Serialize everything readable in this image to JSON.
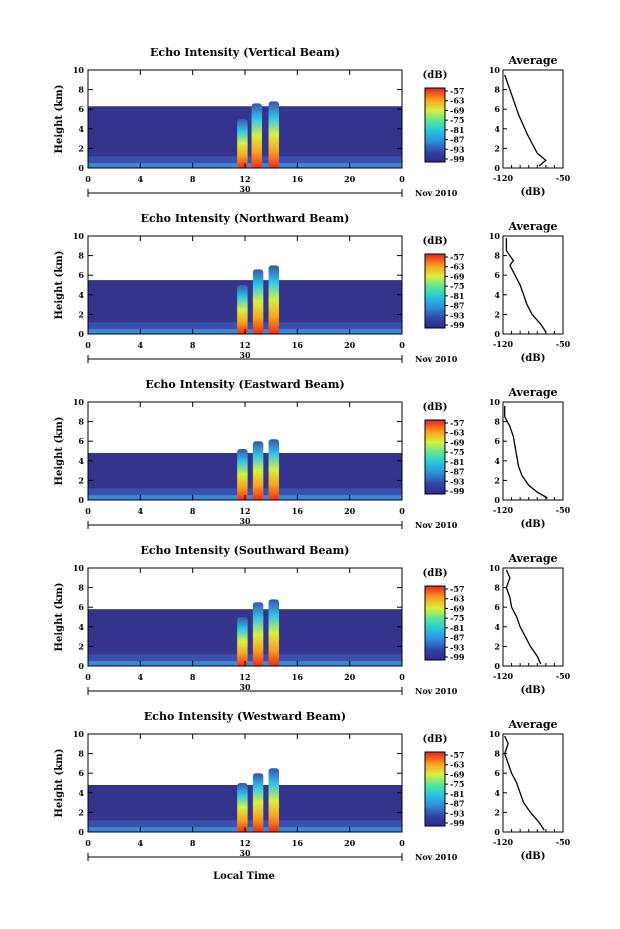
{
  "chart_data": [
    {
      "type": "heatmap",
      "title": "Echo Intensity (Vertical Beam)",
      "xlabel": "",
      "ylabel": "Height (km)",
      "xlim": [
        0,
        24
      ],
      "ylim": [
        0,
        10
      ],
      "xticks": [
        "0",
        "4",
        "8",
        "12",
        "16",
        "20",
        "0"
      ],
      "yticks": [
        "0",
        "2",
        "4",
        "6",
        "8",
        "10"
      ],
      "date_label": "30",
      "month_label": "Nov 2010",
      "colorbar": {
        "unit": "(dB)",
        "ticks": [
          "-57",
          "-63",
          "-69",
          "-75",
          "-81",
          "-87",
          "-93",
          "-99"
        ]
      },
      "profile": {
        "title": "Average",
        "xlabel": "(dB)",
        "xlim": [
          -120,
          -50
        ],
        "xticks": [
          "-120",
          "-50"
        ],
        "ylim": [
          0,
          10
        ],
        "points": [
          [
            -78,
            0.2
          ],
          [
            -70,
            0.8
          ],
          [
            -80,
            1.5
          ],
          [
            -86,
            2.5
          ],
          [
            -92,
            3.5
          ],
          [
            -97,
            4.5
          ],
          [
            -102,
            5.5
          ],
          [
            -106,
            6.5
          ],
          [
            -110,
            7.5
          ],
          [
            -114,
            8.5
          ],
          [
            -118,
            9.5
          ]
        ]
      },
      "echo": {
        "top": 6.3,
        "cells": [
          [
            11.8,
            0.4,
            5.0,
            -57
          ],
          [
            12.9,
            0.4,
            6.6,
            -57
          ],
          [
            14.2,
            0.4,
            6.8,
            -57
          ]
        ]
      }
    },
    {
      "type": "heatmap",
      "title": "Echo Intensity (Northward Beam)",
      "xlabel": "",
      "ylabel": "Height (km)",
      "xlim": [
        0,
        24
      ],
      "ylim": [
        0,
        10
      ],
      "xticks": [
        "0",
        "4",
        "8",
        "12",
        "16",
        "20",
        "0"
      ],
      "yticks": [
        "0",
        "2",
        "4",
        "6",
        "8",
        "10"
      ],
      "date_label": "30",
      "month_label": "Nov 2010",
      "colorbar": {
        "unit": "(dB)",
        "ticks": [
          "-57",
          "-63",
          "-69",
          "-75",
          "-81",
          "-87",
          "-93",
          "-99"
        ]
      },
      "profile": {
        "title": "Average",
        "xlabel": "(dB)",
        "xlim": [
          -120,
          -50
        ],
        "xticks": [
          "-120",
          "-50"
        ],
        "ylim": [
          0,
          10
        ],
        "points": [
          [
            -70,
            0.2
          ],
          [
            -76,
            1.0
          ],
          [
            -86,
            2.0
          ],
          [
            -92,
            3.0
          ],
          [
            -96,
            4.0
          ],
          [
            -100,
            5.0
          ],
          [
            -106,
            6.0
          ],
          [
            -112,
            7.0
          ],
          [
            -108,
            7.5
          ],
          [
            -116,
            8.5
          ],
          [
            -116,
            9.8
          ]
        ]
      },
      "echo": {
        "top": 5.5,
        "cells": [
          [
            11.8,
            0.4,
            5.0,
            -57
          ],
          [
            13.0,
            0.4,
            6.6,
            -57
          ],
          [
            14.2,
            0.4,
            7.0,
            -57
          ]
        ]
      }
    },
    {
      "type": "heatmap",
      "title": "Echo Intensity (Eastward Beam)",
      "xlabel": "",
      "ylabel": "Height (km)",
      "xlim": [
        0,
        24
      ],
      "ylim": [
        0,
        10
      ],
      "xticks": [
        "0",
        "4",
        "8",
        "12",
        "16",
        "20",
        "0"
      ],
      "yticks": [
        "0",
        "2",
        "4",
        "6",
        "8",
        "10"
      ],
      "date_label": "30",
      "month_label": "Nov 2010",
      "colorbar": {
        "unit": "(dB)",
        "ticks": [
          "-57",
          "-63",
          "-69",
          "-75",
          "-81",
          "-87",
          "-93",
          "-99"
        ]
      },
      "profile": {
        "title": "Average",
        "xlabel": "(dB)",
        "xlim": [
          -120,
          -50
        ],
        "xticks": [
          "-120",
          "-50"
        ],
        "ylim": [
          0,
          10
        ],
        "points": [
          [
            -68,
            0.2
          ],
          [
            -80,
            0.8
          ],
          [
            -90,
            1.5
          ],
          [
            -98,
            2.5
          ],
          [
            -102,
            3.5
          ],
          [
            -104,
            4.5
          ],
          [
            -106,
            5.5
          ],
          [
            -108,
            6.5
          ],
          [
            -112,
            7.5
          ],
          [
            -118,
            8.5
          ],
          [
            -118,
            9.6
          ]
        ]
      },
      "echo": {
        "top": 4.8,
        "cells": [
          [
            11.8,
            0.4,
            5.2,
            -57
          ],
          [
            13.0,
            0.4,
            6.0,
            -57
          ],
          [
            14.2,
            0.4,
            6.2,
            -57
          ]
        ]
      }
    },
    {
      "type": "heatmap",
      "title": "Echo Intensity (Southward Beam)",
      "xlabel": "",
      "ylabel": "Height (km)",
      "xlim": [
        0,
        24
      ],
      "ylim": [
        0,
        10
      ],
      "xticks": [
        "0",
        "4",
        "8",
        "12",
        "16",
        "20",
        "0"
      ],
      "yticks": [
        "0",
        "2",
        "4",
        "6",
        "8",
        "10"
      ],
      "date_label": "30",
      "month_label": "Nov 2010",
      "colorbar": {
        "unit": "(dB)",
        "ticks": [
          "-57",
          "-63",
          "-69",
          "-75",
          "-81",
          "-87",
          "-93",
          "-99"
        ]
      },
      "profile": {
        "title": "Average",
        "xlabel": "(dB)",
        "xlim": [
          -120,
          -50
        ],
        "xticks": [
          "-120",
          "-50"
        ],
        "ylim": [
          0,
          10
        ],
        "points": [
          [
            -76,
            0.2
          ],
          [
            -80,
            1.0
          ],
          [
            -88,
            2.0
          ],
          [
            -94,
            3.0
          ],
          [
            -100,
            4.0
          ],
          [
            -104,
            5.0
          ],
          [
            -110,
            6.0
          ],
          [
            -112,
            7.0
          ],
          [
            -116,
            8.0
          ],
          [
            -112,
            9.0
          ],
          [
            -116,
            9.8
          ]
        ]
      },
      "echo": {
        "top": 5.8,
        "cells": [
          [
            11.8,
            0.4,
            5.0,
            -57
          ],
          [
            13.0,
            0.4,
            6.5,
            -57
          ],
          [
            14.2,
            0.4,
            6.8,
            -57
          ]
        ]
      }
    },
    {
      "type": "heatmap",
      "title": "Echo Intensity (Westward Beam)",
      "xlabel": "Local Time",
      "ylabel": "Height (km)",
      "xlim": [
        0,
        24
      ],
      "ylim": [
        0,
        10
      ],
      "xticks": [
        "0",
        "4",
        "8",
        "12",
        "16",
        "20",
        "0"
      ],
      "yticks": [
        "0",
        "2",
        "4",
        "6",
        "8",
        "10"
      ],
      "date_label": "30",
      "month_label": "Nov 2010",
      "colorbar": {
        "unit": "(dB)",
        "ticks": [
          "-57",
          "-63",
          "-69",
          "-75",
          "-81",
          "-87",
          "-93",
          "-99"
        ]
      },
      "profile": {
        "title": "Average",
        "xlabel": "(dB)",
        "xlim": [
          -120,
          -50
        ],
        "xticks": [
          "-120",
          "-50"
        ],
        "ylim": [
          0,
          10
        ],
        "points": [
          [
            -72,
            0.2
          ],
          [
            -78,
            1.0
          ],
          [
            -88,
            2.0
          ],
          [
            -96,
            3.0
          ],
          [
            -100,
            4.0
          ],
          [
            -104,
            5.0
          ],
          [
            -110,
            6.0
          ],
          [
            -114,
            7.0
          ],
          [
            -118,
            8.0
          ],
          [
            -114,
            9.0
          ],
          [
            -118,
            9.8
          ]
        ]
      },
      "echo": {
        "top": 4.8,
        "cells": [
          [
            11.8,
            0.4,
            5.0,
            -57
          ],
          [
            13.0,
            0.4,
            6.0,
            -57
          ],
          [
            14.2,
            0.4,
            6.5,
            -57
          ]
        ]
      }
    }
  ]
}
